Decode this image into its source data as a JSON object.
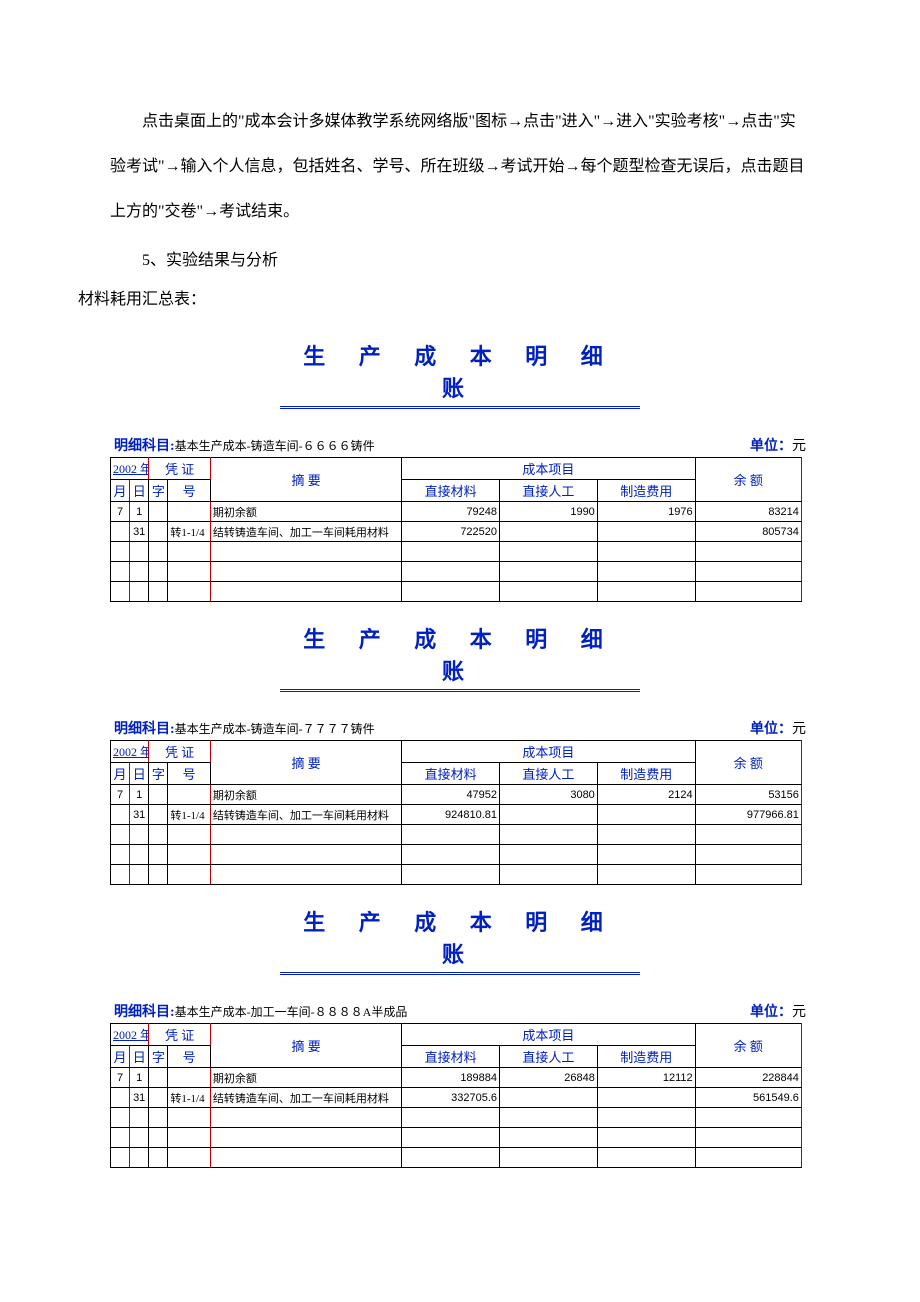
{
  "intro": {
    "paragraph": "点击桌面上的\"成本会计多媒体教学系统网络版\"图标→点击\"进入\"→进入\"实验考核\"→点击\"实验考试\"→输入个人信息，包括姓名、学号、所在班级→考试开始→每个题型检查无误后，点击题目上方的\"交卷\"→考试结束。",
    "section": "5、实验结果与分析",
    "subtitle": "材料耗用汇总表："
  },
  "common": {
    "title": "生 产 成 本 明 细 账",
    "subject_label": "明细科目:",
    "unit_label": "单位：",
    "unit_value": "元",
    "year": "2002\n年",
    "headers": {
      "voucher": "凭 证",
      "month": "月",
      "day": "日",
      "zi": "字",
      "hao": "号",
      "summary": "摘    要",
      "cost_items": "成本项目",
      "direct_material": "直接材料",
      "direct_labor": "直接人工",
      "manufacturing": "制造费用",
      "balance": "余  额"
    }
  },
  "ledgers": [
    {
      "subject": "基本生产成本-铸造车间-６６６６铸件",
      "rows": [
        {
          "month": "7",
          "day": "1",
          "zi": "",
          "hao": "",
          "summary": "期初余额",
          "dm": "79248",
          "dl": "1990",
          "mf": "1976",
          "bal": "83214"
        },
        {
          "month": "",
          "day": "31",
          "zi": "",
          "hao": "转1-1/4",
          "summary": "结转铸造车间、加工一车间耗用材料",
          "dm": "722520",
          "dl": "",
          "mf": "",
          "bal": "805734"
        },
        {
          "month": "",
          "day": "",
          "zi": "",
          "hao": "",
          "summary": "",
          "dm": "",
          "dl": "",
          "mf": "",
          "bal": ""
        },
        {
          "month": "",
          "day": "",
          "zi": "",
          "hao": "",
          "summary": "",
          "dm": "",
          "dl": "",
          "mf": "",
          "bal": ""
        },
        {
          "month": "",
          "day": "",
          "zi": "",
          "hao": "",
          "summary": "",
          "dm": "",
          "dl": "",
          "mf": "",
          "bal": ""
        }
      ]
    },
    {
      "subject": "基本生产成本-铸造车间-７７７７铸件",
      "rows": [
        {
          "month": "7",
          "day": "1",
          "zi": "",
          "hao": "",
          "summary": "期初余额",
          "dm": "47952",
          "dl": "3080",
          "mf": "2124",
          "bal": "53156"
        },
        {
          "month": "",
          "day": "31",
          "zi": "",
          "hao": "转1-1/4",
          "summary": "结转铸造车间、加工一车间耗用材料",
          "dm": "924810.81",
          "dl": "",
          "mf": "",
          "bal": "977966.81"
        },
        {
          "month": "",
          "day": "",
          "zi": "",
          "hao": "",
          "summary": "",
          "dm": "",
          "dl": "",
          "mf": "",
          "bal": ""
        },
        {
          "month": "",
          "day": "",
          "zi": "",
          "hao": "",
          "summary": "",
          "dm": "",
          "dl": "",
          "mf": "",
          "bal": ""
        },
        {
          "month": "",
          "day": "",
          "zi": "",
          "hao": "",
          "summary": "",
          "dm": "",
          "dl": "",
          "mf": "",
          "bal": ""
        }
      ]
    },
    {
      "subject": "基本生产成本-加工一车间-８８８８A半成品",
      "rows": [
        {
          "month": "7",
          "day": "1",
          "zi": "",
          "hao": "",
          "summary": "期初余额",
          "dm": "189884",
          "dl": "26848",
          "mf": "12112",
          "bal": "228844"
        },
        {
          "month": "",
          "day": "31",
          "zi": "",
          "hao": "转1-1/4",
          "summary": "结转铸造车间、加工一车间耗用材料",
          "dm": "332705.6",
          "dl": "",
          "mf": "",
          "bal": "561549.6"
        },
        {
          "month": "",
          "day": "",
          "zi": "",
          "hao": "",
          "summary": "",
          "dm": "",
          "dl": "",
          "mf": "",
          "bal": ""
        },
        {
          "month": "",
          "day": "",
          "zi": "",
          "hao": "",
          "summary": "",
          "dm": "",
          "dl": "",
          "mf": "",
          "bal": ""
        },
        {
          "month": "",
          "day": "",
          "zi": "",
          "hao": "",
          "summary": "",
          "dm": "",
          "dl": "",
          "mf": "",
          "bal": ""
        }
      ]
    }
  ]
}
